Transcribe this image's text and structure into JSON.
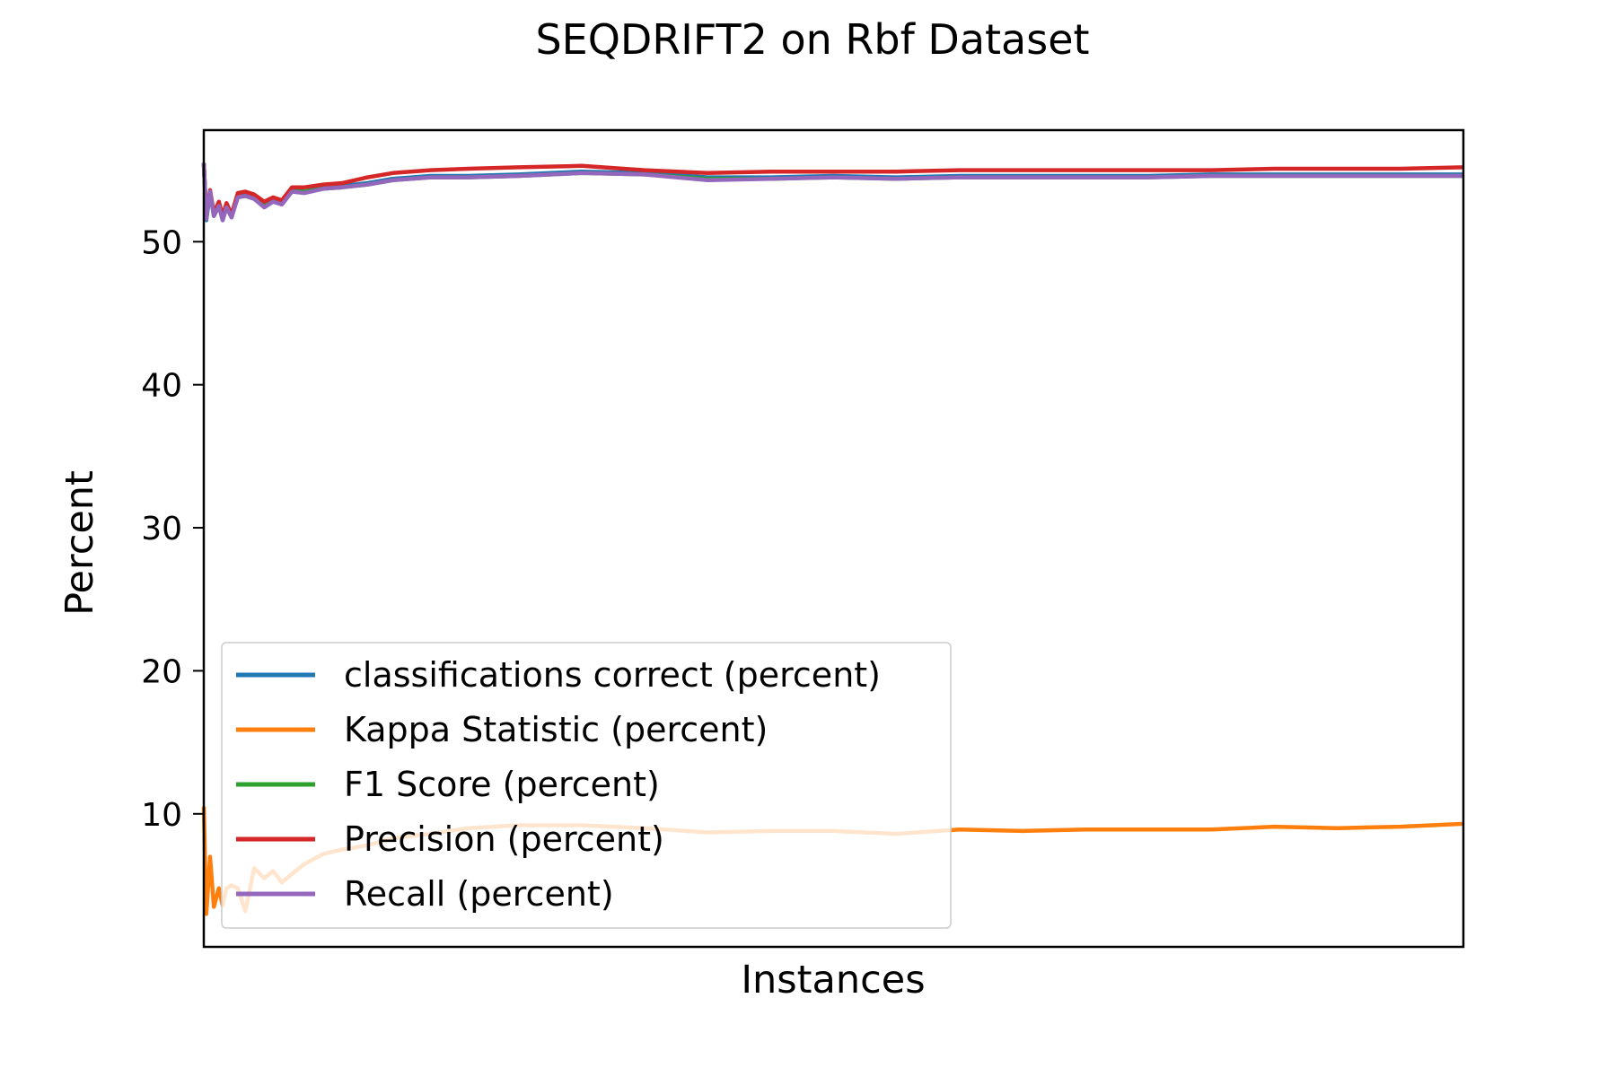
{
  "chart_data": {
    "type": "line",
    "title": "SEQDRIFT2 on Rbf Dataset",
    "xlabel": "Instances",
    "ylabel": "Percent",
    "xlim": [
      0,
      1000
    ],
    "ylim": [
      0.7,
      57.8
    ],
    "x_ticks_visible": false,
    "y_ticks": [
      10,
      20,
      30,
      40,
      50
    ],
    "grid": false,
    "legend_position": "lower-left",
    "series": [
      {
        "name": "classifications correct (percent)",
        "color": "#1f77b4",
        "points": [
          [
            0,
            55.5
          ],
          [
            2,
            51.5
          ],
          [
            5,
            53.5
          ],
          [
            8,
            51.8
          ],
          [
            12,
            52.6
          ],
          [
            15,
            51.5
          ],
          [
            18,
            52.5
          ],
          [
            22,
            51.7
          ],
          [
            27,
            53.2
          ],
          [
            33,
            53.3
          ],
          [
            40,
            53.0
          ],
          [
            48,
            52.5
          ],
          [
            55,
            52.9
          ],
          [
            62,
            52.7
          ],
          [
            70,
            53.6
          ],
          [
            80,
            53.5
          ],
          [
            95,
            53.8
          ],
          [
            110,
            53.9
          ],
          [
            130,
            54.1
          ],
          [
            150,
            54.4
          ],
          [
            180,
            54.6
          ],
          [
            210,
            54.6
          ],
          [
            250,
            54.7
          ],
          [
            300,
            54.9
          ],
          [
            350,
            54.8
          ],
          [
            400,
            54.5
          ],
          [
            450,
            54.5
          ],
          [
            500,
            54.6
          ],
          [
            550,
            54.5
          ],
          [
            600,
            54.6
          ],
          [
            650,
            54.6
          ],
          [
            700,
            54.6
          ],
          [
            750,
            54.6
          ],
          [
            800,
            54.7
          ],
          [
            850,
            54.7
          ],
          [
            900,
            54.7
          ],
          [
            950,
            54.7
          ],
          [
            1000,
            54.7
          ]
        ]
      },
      {
        "name": "Kappa Statistic (percent)",
        "color": "#ff7f0e",
        "points": [
          [
            0,
            10.5
          ],
          [
            2,
            3.0
          ],
          [
            5,
            7.0
          ],
          [
            8,
            3.5
          ],
          [
            12,
            4.8
          ],
          [
            15,
            3.6
          ],
          [
            18,
            4.8
          ],
          [
            22,
            5.0
          ],
          [
            27,
            4.8
          ],
          [
            33,
            3.2
          ],
          [
            40,
            6.2
          ],
          [
            48,
            5.5
          ],
          [
            55,
            6.0
          ],
          [
            62,
            5.2
          ],
          [
            70,
            5.8
          ],
          [
            80,
            6.5
          ],
          [
            95,
            7.2
          ],
          [
            110,
            7.5
          ],
          [
            130,
            7.8
          ],
          [
            150,
            8.3
          ],
          [
            180,
            8.6
          ],
          [
            210,
            9.0
          ],
          [
            250,
            9.2
          ],
          [
            300,
            9.2
          ],
          [
            350,
            9.0
          ],
          [
            400,
            8.7
          ],
          [
            450,
            8.8
          ],
          [
            500,
            8.8
          ],
          [
            550,
            8.6
          ],
          [
            600,
            8.9
          ],
          [
            650,
            8.8
          ],
          [
            700,
            8.9
          ],
          [
            750,
            8.9
          ],
          [
            800,
            8.9
          ],
          [
            850,
            9.1
          ],
          [
            900,
            9.0
          ],
          [
            950,
            9.1
          ],
          [
            1000,
            9.3
          ]
        ]
      },
      {
        "name": "F1 Score (percent)",
        "color": "#2ca02c",
        "points": [
          [
            0,
            55.4
          ],
          [
            2,
            51.6
          ],
          [
            5,
            53.4
          ],
          [
            8,
            51.8
          ],
          [
            12,
            52.5
          ],
          [
            15,
            51.6
          ],
          [
            18,
            52.4
          ],
          [
            22,
            51.8
          ],
          [
            27,
            53.1
          ],
          [
            33,
            53.2
          ],
          [
            40,
            53.0
          ],
          [
            48,
            52.5
          ],
          [
            55,
            52.8
          ],
          [
            62,
            52.7
          ],
          [
            70,
            53.5
          ],
          [
            80,
            53.5
          ],
          [
            95,
            53.7
          ],
          [
            110,
            53.8
          ],
          [
            130,
            54.0
          ],
          [
            150,
            54.3
          ],
          [
            180,
            54.5
          ],
          [
            210,
            54.5
          ],
          [
            250,
            54.6
          ],
          [
            300,
            54.8
          ],
          [
            350,
            54.7
          ],
          [
            400,
            54.4
          ],
          [
            450,
            54.4
          ],
          [
            500,
            54.5
          ],
          [
            550,
            54.4
          ],
          [
            600,
            54.5
          ],
          [
            650,
            54.5
          ],
          [
            700,
            54.5
          ],
          [
            750,
            54.5
          ],
          [
            800,
            54.6
          ],
          [
            850,
            54.6
          ],
          [
            900,
            54.6
          ],
          [
            950,
            54.6
          ],
          [
            1000,
            54.6
          ]
        ]
      },
      {
        "name": "Precision (percent)",
        "color": "#d62728",
        "points": [
          [
            0,
            55.5
          ],
          [
            2,
            51.8
          ],
          [
            5,
            53.6
          ],
          [
            8,
            52.0
          ],
          [
            12,
            52.8
          ],
          [
            15,
            51.8
          ],
          [
            18,
            52.7
          ],
          [
            22,
            51.9
          ],
          [
            27,
            53.4
          ],
          [
            33,
            53.5
          ],
          [
            40,
            53.3
          ],
          [
            48,
            52.8
          ],
          [
            55,
            53.1
          ],
          [
            62,
            52.9
          ],
          [
            70,
            53.8
          ],
          [
            80,
            53.8
          ],
          [
            95,
            54.0
          ],
          [
            110,
            54.1
          ],
          [
            130,
            54.5
          ],
          [
            150,
            54.8
          ],
          [
            180,
            55.0
          ],
          [
            210,
            55.1
          ],
          [
            250,
            55.2
          ],
          [
            300,
            55.3
          ],
          [
            350,
            55.0
          ],
          [
            400,
            54.8
          ],
          [
            450,
            54.9
          ],
          [
            500,
            54.9
          ],
          [
            550,
            54.9
          ],
          [
            600,
            55.0
          ],
          [
            650,
            55.0
          ],
          [
            700,
            55.0
          ],
          [
            750,
            55.0
          ],
          [
            800,
            55.0
          ],
          [
            850,
            55.1
          ],
          [
            900,
            55.1
          ],
          [
            950,
            55.1
          ],
          [
            1000,
            55.2
          ]
        ]
      },
      {
        "name": "Recall (percent)",
        "color": "#9467bd",
        "points": [
          [
            0,
            55.5
          ],
          [
            2,
            51.6
          ],
          [
            5,
            53.5
          ],
          [
            8,
            51.8
          ],
          [
            12,
            52.5
          ],
          [
            15,
            51.5
          ],
          [
            18,
            52.4
          ],
          [
            22,
            51.7
          ],
          [
            27,
            53.1
          ],
          [
            33,
            53.2
          ],
          [
            40,
            53.0
          ],
          [
            48,
            52.4
          ],
          [
            55,
            52.8
          ],
          [
            62,
            52.6
          ],
          [
            70,
            53.5
          ],
          [
            80,
            53.4
          ],
          [
            95,
            53.7
          ],
          [
            110,
            53.8
          ],
          [
            130,
            54.0
          ],
          [
            150,
            54.3
          ],
          [
            180,
            54.5
          ],
          [
            210,
            54.5
          ],
          [
            250,
            54.6
          ],
          [
            300,
            54.8
          ],
          [
            350,
            54.7
          ],
          [
            400,
            54.3
          ],
          [
            450,
            54.4
          ],
          [
            500,
            54.5
          ],
          [
            550,
            54.4
          ],
          [
            600,
            54.5
          ],
          [
            650,
            54.5
          ],
          [
            700,
            54.5
          ],
          [
            750,
            54.5
          ],
          [
            800,
            54.6
          ],
          [
            850,
            54.6
          ],
          [
            900,
            54.6
          ],
          [
            950,
            54.6
          ],
          [
            1000,
            54.6
          ]
        ]
      }
    ]
  }
}
